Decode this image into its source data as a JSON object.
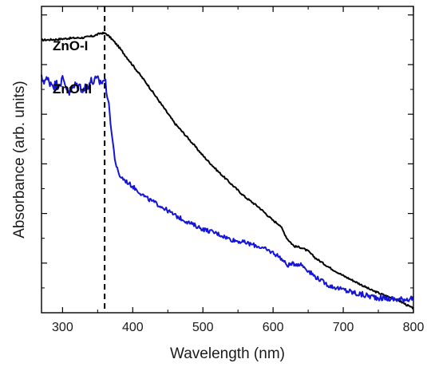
{
  "chart_data": {
    "type": "line",
    "xlabel": "Wavelength (nm)",
    "ylabel": "Absorbance (arb. units)",
    "xlim": [
      270,
      800
    ],
    "ylim": [
      0,
      1
    ],
    "x_ticks": [
      300,
      400,
      500,
      600,
      700,
      800
    ],
    "y_tick_labels_shown": false,
    "grid": false,
    "legend": "none",
    "annotations": [
      {
        "type": "vertical_dashed_line",
        "x": 360,
        "color": "#000000"
      }
    ],
    "series": [
      {
        "name": "ZnO-I",
        "color": "#000000",
        "x": [
          270,
          290,
          310,
          330,
          345,
          355,
          362,
          370,
          380,
          400,
          420,
          440,
          460,
          480,
          500,
          520,
          540,
          560,
          580,
          600,
          610,
          620,
          630,
          640,
          650,
          660,
          680,
          700,
          720,
          740,
          760,
          780,
          800
        ],
        "y": [
          0.89,
          0.892,
          0.896,
          0.898,
          0.904,
          0.913,
          0.911,
          0.894,
          0.868,
          0.808,
          0.748,
          0.683,
          0.618,
          0.567,
          0.513,
          0.465,
          0.421,
          0.378,
          0.344,
          0.301,
          0.286,
          0.242,
          0.217,
          0.213,
          0.201,
          0.179,
          0.148,
          0.121,
          0.098,
          0.074,
          0.056,
          0.039,
          0.013
        ]
      },
      {
        "name": "ZnO-II",
        "color": "#1515d8",
        "x": [
          270,
          280,
          290,
          300,
          310,
          320,
          330,
          340,
          350,
          355,
          360,
          365,
          370,
          375,
          380,
          390,
          400,
          420,
          440,
          460,
          480,
          500,
          520,
          540,
          560,
          580,
          600,
          610,
          620,
          630,
          640,
          650,
          660,
          680,
          700,
          720,
          740,
          760,
          780,
          800
        ],
        "y": [
          0.762,
          0.758,
          0.741,
          0.76,
          0.72,
          0.745,
          0.73,
          0.754,
          0.758,
          0.752,
          0.762,
          0.7,
          0.585,
          0.495,
          0.45,
          0.43,
          0.412,
          0.374,
          0.348,
          0.318,
          0.294,
          0.273,
          0.259,
          0.239,
          0.229,
          0.216,
          0.196,
          0.181,
          0.155,
          0.16,
          0.158,
          0.138,
          0.118,
          0.088,
          0.075,
          0.062,
          0.053,
          0.047,
          0.043,
          0.048
        ]
      }
    ]
  }
}
